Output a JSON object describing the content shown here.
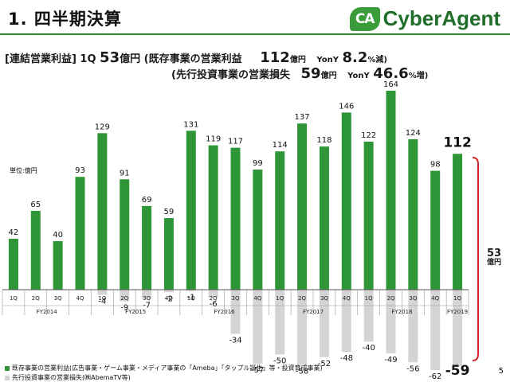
{
  "page": {
    "title": "1. 四半期決算",
    "logo_text": "CyberAgent",
    "logo_mark": "CA",
    "page_number": "5"
  },
  "subtitle": {
    "line1_prefix": "[連結営業利益] 1Q",
    "line1_value": "53",
    "line1_unit": "億円",
    "line1_paren": "(既存事業の営業利益",
    "line1_seg_value": "112",
    "line1_seg_unit": "億円",
    "line1_yoy_label": "YonY",
    "line1_yoy_value": "8.2",
    "line1_yoy_suffix": "%減)",
    "line2_paren": "(先行投資事業の営業損失",
    "line2_seg_value": "59",
    "line2_seg_unit": "億円",
    "line2_yoy_label": "YonY",
    "line2_yoy_value": "46.6",
    "line2_yoy_suffix": "%増)"
  },
  "unit_label": "単位:億円",
  "annotation": {
    "value": "53",
    "unit": "億円"
  },
  "legend": [
    {
      "label": "既存事業の営業利益(広告事業・ゲーム事業・メディア事業の「Ameba」「タップル誕生」等・投資育成事業)",
      "color": "#2e9636"
    },
    {
      "label": "先行投資事業の営業損失(㈱AbemaTV等)",
      "color": "#d4d4d4"
    }
  ],
  "chart_data": {
    "type": "bar",
    "categories": [
      "1Q",
      "2Q",
      "3Q",
      "4Q",
      "1Q",
      "2Q",
      "3Q",
      "4Q",
      "1Q",
      "2Q",
      "3Q",
      "4Q",
      "1Q",
      "2Q",
      "3Q",
      "4Q",
      "1Q",
      "2Q",
      "3Q",
      "4Q",
      "1Q"
    ],
    "fiscal_years": [
      {
        "label": "FY2014",
        "start": 0,
        "end": 3
      },
      {
        "label": "FY2015",
        "start": 4,
        "end": 7
      },
      {
        "label": "FY2016",
        "start": 8,
        "end": 11
      },
      {
        "label": "FY2017",
        "start": 12,
        "end": 15
      },
      {
        "label": "FY2018",
        "start": 16,
        "end": 19
      },
      {
        "label": "FY2019",
        "start": 20,
        "end": 20
      }
    ],
    "series": [
      {
        "name": "既存事業の営業利益",
        "color": "#2e9636",
        "values": [
          42,
          65,
          40,
          93,
          129,
          91,
          69,
          59,
          131,
          119,
          117,
          99,
          114,
          137,
          118,
          146,
          122,
          164,
          124,
          98,
          112
        ],
        "labels": [
          "42",
          "65",
          "40",
          "93",
          "129",
          "91",
          "69",
          "59",
          "131",
          "119",
          "117",
          "99",
          "114",
          "137",
          "118",
          "146",
          "122",
          "164",
          "124",
          "98",
          "112"
        ]
      },
      {
        "name": "先行投資事業の営業損失",
        "color": "#d4d4d4",
        "values": [
          0,
          0,
          0,
          0,
          -4,
          -9,
          -7,
          -2,
          -1,
          -6,
          -34,
          -57,
          -50,
          -58,
          -52,
          -48,
          -40,
          -49,
          -56,
          -62,
          -59
        ],
        "labels": [
          "",
          "",
          "",
          "",
          "-4",
          "-9",
          "-7",
          "-2",
          "-1",
          "-6",
          "-34",
          "-57",
          "-50",
          "-58",
          "-52",
          "-48",
          "-40",
          "-49",
          "-56",
          "-62",
          "-59"
        ]
      }
    ],
    "ylim": [
      -70,
      170
    ],
    "xlabel": "",
    "ylabel": "",
    "grid": false,
    "legend_position": "bottom-left"
  }
}
